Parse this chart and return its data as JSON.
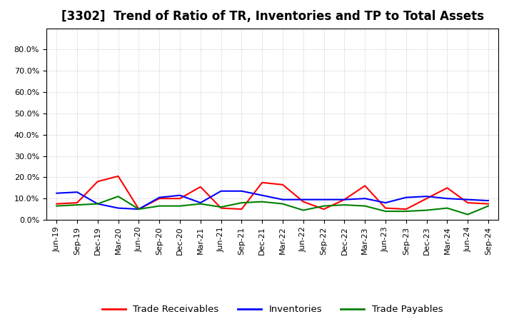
{
  "title": "[3302]  Trend of Ratio of TR, Inventories and TP to Total Assets",
  "x_labels": [
    "Jun-19",
    "Sep-19",
    "Dec-19",
    "Mar-20",
    "Jun-20",
    "Sep-20",
    "Dec-20",
    "Mar-21",
    "Jun-21",
    "Sep-21",
    "Dec-21",
    "Mar-22",
    "Jun-22",
    "Sep-22",
    "Dec-22",
    "Mar-23",
    "Jun-23",
    "Sep-23",
    "Dec-23",
    "Mar-24",
    "Jun-24",
    "Sep-24"
  ],
  "trade_receivables": [
    7.5,
    8.0,
    18.0,
    20.5,
    5.0,
    10.0,
    10.0,
    15.5,
    5.5,
    5.0,
    17.5,
    16.5,
    8.5,
    5.0,
    9.5,
    16.0,
    5.5,
    5.0,
    10.0,
    15.0,
    8.0,
    7.5
  ],
  "inventories": [
    12.5,
    13.0,
    7.5,
    5.5,
    5.0,
    10.5,
    11.5,
    8.0,
    13.5,
    13.5,
    11.5,
    9.5,
    9.5,
    9.5,
    9.5,
    10.0,
    8.0,
    10.5,
    11.0,
    10.0,
    9.5,
    9.0
  ],
  "trade_payables": [
    6.5,
    7.0,
    7.5,
    11.0,
    5.0,
    6.5,
    6.5,
    7.5,
    6.0,
    8.0,
    8.5,
    7.5,
    4.5,
    6.5,
    7.0,
    6.5,
    4.0,
    4.0,
    4.5,
    5.5,
    2.5,
    6.5
  ],
  "tr_color": "#ff0000",
  "inv_color": "#0000ff",
  "tp_color": "#008000",
  "ylim_max": 90,
  "yticks": [
    0,
    10,
    20,
    30,
    40,
    50,
    60,
    70,
    80
  ],
  "ytick_labels": [
    "0.0%",
    "10.0%",
    "20.0%",
    "30.0%",
    "40.0%",
    "50.0%",
    "60.0%",
    "70.0%",
    "80.0%"
  ],
  "legend_labels": [
    "Trade Receivables",
    "Inventories",
    "Trade Payables"
  ],
  "background_color": "#ffffff",
  "grid_color": "#999999",
  "title_fontsize": 12,
  "axis_fontsize": 8,
  "legend_fontsize": 9.5
}
